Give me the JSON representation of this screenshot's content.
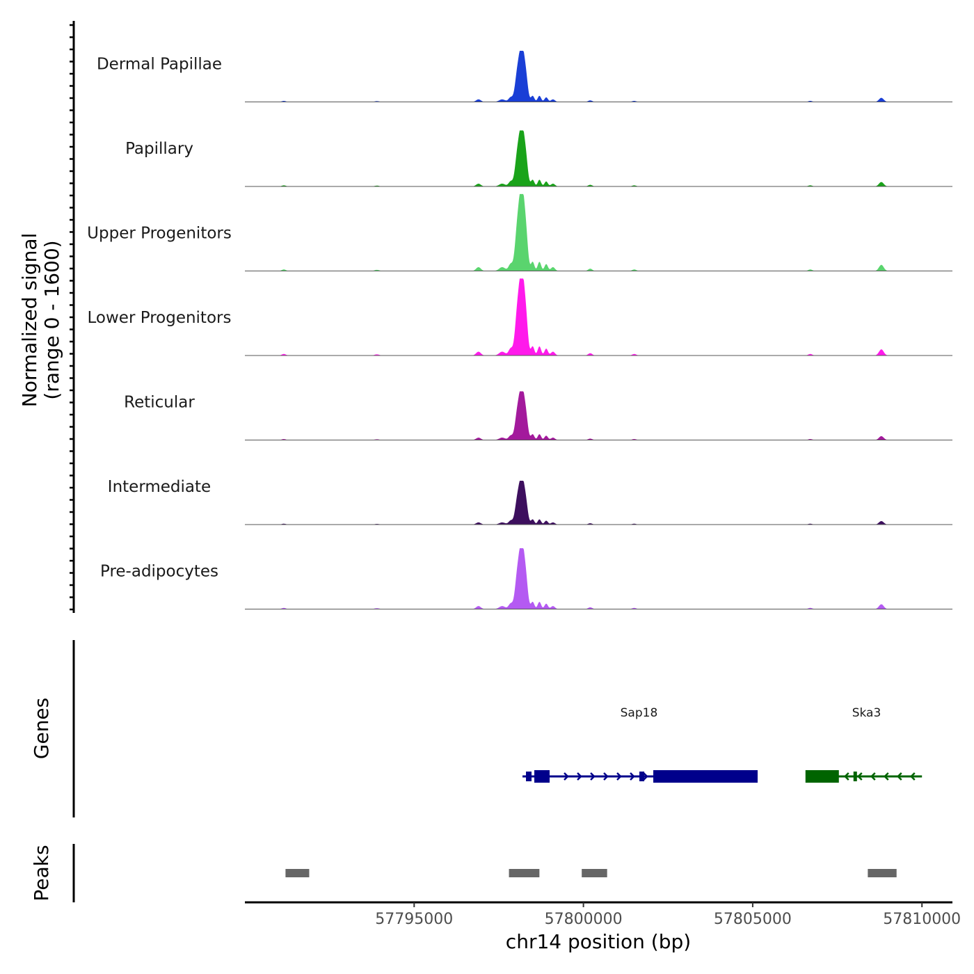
{
  "chart_data": {
    "type": "area",
    "title": "",
    "ylabel_line1": "Normalized signal",
    "ylabel_line2": "(range 0 - 1600)",
    "ylim": [
      0,
      1600
    ],
    "xlabel": "chr14 position (bp)",
    "xlim": [
      57790000,
      57810900
    ],
    "x_ticks": [
      57795000,
      57800000,
      57805000,
      57810000
    ],
    "x_tick_labels": [
      "57795000",
      "57800000",
      "57805000",
      "57810000"
    ],
    "tracks": [
      {
        "name": "Dermal Papillae",
        "color": "#1a3fd6",
        "peak_height": 1050
      },
      {
        "name": "Papillary",
        "color": "#1aa31a",
        "peak_height": 1150
      },
      {
        "name": "Upper Progenitors",
        "color": "#5ad46e",
        "peak_height": 1580
      },
      {
        "name": "Lower Progenitors",
        "color": "#ff1aeb",
        "peak_height": 1580
      },
      {
        "name": "Reticular",
        "color": "#a31a9c",
        "peak_height": 1000
      },
      {
        "name": "Intermediate",
        "color": "#3d0f5e",
        "peak_height": 900
      },
      {
        "name": "Pre-adipocytes",
        "color": "#b45af2",
        "peak_height": 1250
      }
    ],
    "genes_label": "Genes",
    "genes": [
      {
        "name": "Sap18",
        "strand": "+",
        "color": "#00008b",
        "start": 57798200,
        "end": 57805000
      },
      {
        "name": "Ska3",
        "strand": "-",
        "color": "#006400",
        "start": 57806600,
        "end": 57810000
      }
    ],
    "peaks_label": "Peaks",
    "peaks": [
      {
        "start": 57791200,
        "end": 57791900
      },
      {
        "start": 57797800,
        "end": 57798700
      },
      {
        "start": 57799950,
        "end": 57800700
      },
      {
        "start": 57808400,
        "end": 57809250
      }
    ]
  }
}
